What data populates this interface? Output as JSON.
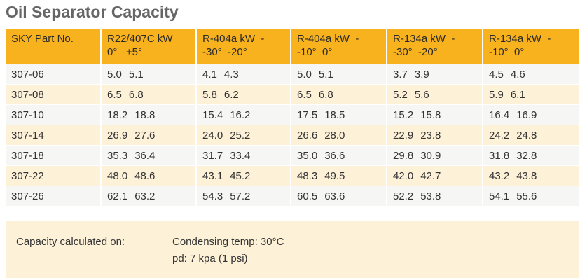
{
  "title": "Oil Separator Capacity",
  "table": {
    "headers": [
      [
        "SKY Part No."
      ],
      [
        "R22/407C kW",
        "0°   +5°"
      ],
      [
        "R-404a kW  -",
        "-30°  -20°"
      ],
      [
        "R-404a kW  -",
        "-10°  0°"
      ],
      [
        "R-134a kW  -",
        "-30°  -20°"
      ],
      [
        "R-134a kW  -",
        "-10°  0°"
      ]
    ],
    "rows": [
      {
        "part": "307-06",
        "cells": [
          [
            "5.0",
            "5.1"
          ],
          [
            "4.1",
            "4.3"
          ],
          [
            "5.0",
            "5.1"
          ],
          [
            "3.7",
            "3.9"
          ],
          [
            "4.5",
            "4.6"
          ]
        ]
      },
      {
        "part": "307-08",
        "cells": [
          [
            "6.5",
            "6.8"
          ],
          [
            "5.8",
            "6.2"
          ],
          [
            "6.5",
            "6.8"
          ],
          [
            "5.2",
            "5.6"
          ],
          [
            "5.9",
            "6.1"
          ]
        ]
      },
      {
        "part": "307-10",
        "cells": [
          [
            "18.2",
            "18.8"
          ],
          [
            "15.4",
            "16.2"
          ],
          [
            "17.5",
            "18.5"
          ],
          [
            "15.2",
            "15.8"
          ],
          [
            "16.4",
            "16.9"
          ]
        ]
      },
      {
        "part": "307-14",
        "cells": [
          [
            "26.9",
            "27.6"
          ],
          [
            "24.0",
            "25.2"
          ],
          [
            "26.6",
            "28.0"
          ],
          [
            "22.9",
            "23.8"
          ],
          [
            "24.2",
            "24.8"
          ]
        ]
      },
      {
        "part": "307-18",
        "cells": [
          [
            "35.3",
            "36.4"
          ],
          [
            "31.7",
            "33.4"
          ],
          [
            "35.0",
            "36.6"
          ],
          [
            "29.8",
            "30.9"
          ],
          [
            "31.8",
            "32.8"
          ]
        ]
      },
      {
        "part": "307-22",
        "cells": [
          [
            "48.0",
            "48.6"
          ],
          [
            "43.1",
            "45.2"
          ],
          [
            "48.3",
            "49.5"
          ],
          [
            "42.0",
            "42.7"
          ],
          [
            "43.2",
            "43.8"
          ]
        ]
      },
      {
        "part": "307-26",
        "cells": [
          [
            "62.1",
            "63.2"
          ],
          [
            "54.3",
            "57.2"
          ],
          [
            "60.5",
            "63.6"
          ],
          [
            "52.2",
            "53.8"
          ],
          [
            "54.1",
            "55.6"
          ]
        ]
      }
    ]
  },
  "note": {
    "label": "Capacity calculated on:",
    "lines": [
      "Condensing temp: 30°C",
      "pd: 7 kpa (1 psi)"
    ]
  }
}
